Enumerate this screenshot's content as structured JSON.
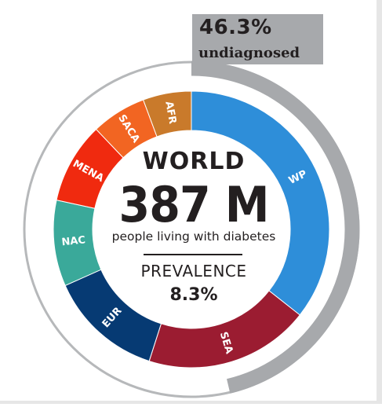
{
  "callout": {
    "value": "46.3%",
    "label": "undiagnosed"
  },
  "center": {
    "title": "WORLD",
    "big_number": "387 M",
    "subtitle": "people living with diabetes",
    "prevalence_label": "PREVALENCE",
    "prevalence_value": "8.3%"
  },
  "chart_data": {
    "type": "pie",
    "title": "WORLD",
    "segments": [
      {
        "label": "WP",
        "color": "#2e8ed9",
        "value": 138.2
      },
      {
        "label": "SEA",
        "color": "#9b1c31",
        "value": 75.0
      },
      {
        "label": "EUR",
        "color": "#063a73",
        "value": 52.0
      },
      {
        "label": "NAC",
        "color": "#3aa99a",
        "value": 39.0
      },
      {
        "label": "MENA",
        "color": "#f02a0f",
        "value": 36.8
      },
      {
        "label": "SACA",
        "color": "#f26522",
        "value": 25.0
      },
      {
        "label": "AFR",
        "color": "#c97a2b",
        "value": 22.0
      }
    ],
    "total": "387 M",
    "undiagnosed_share": 46.3,
    "undiagnosed_color": "#a7a9ac"
  }
}
